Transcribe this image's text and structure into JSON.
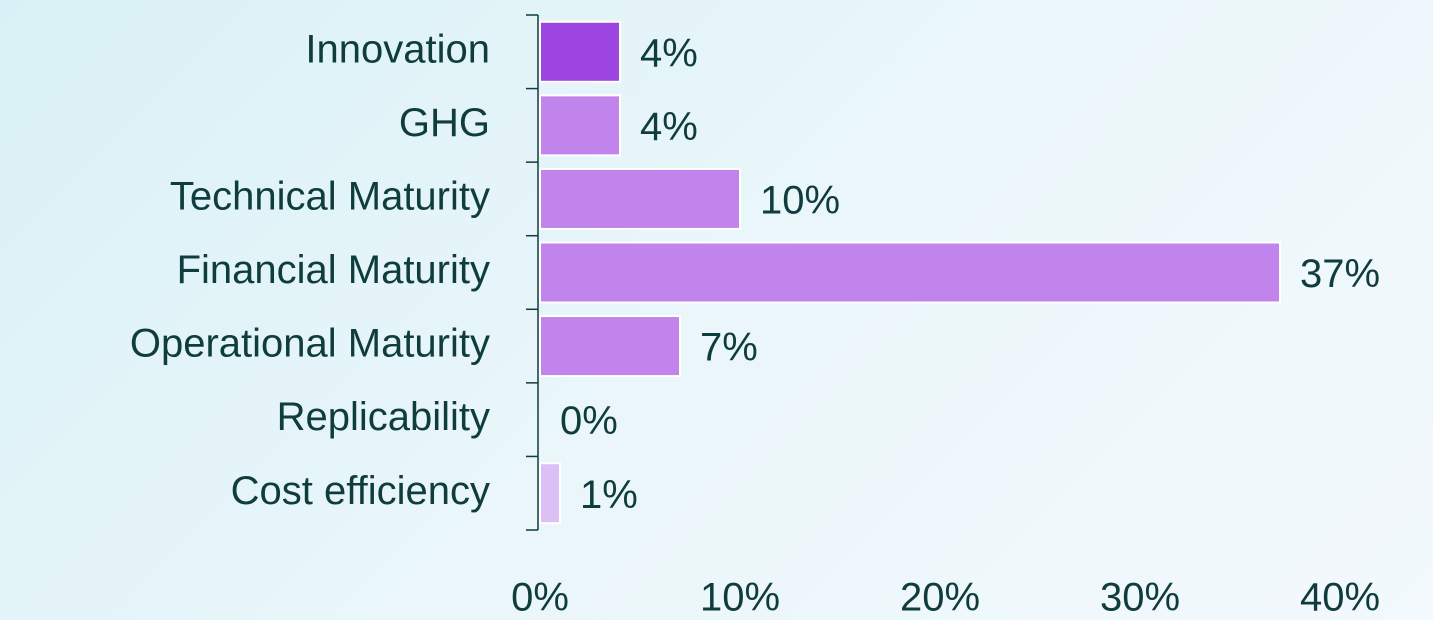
{
  "chart_data": {
    "type": "hbar",
    "categories": [
      "Innovation",
      "GHG",
      "Technical Maturity",
      "Financial Maturity",
      "Operational Maturity",
      "Replicability",
      "Cost efficiency"
    ],
    "values": [
      4,
      4,
      10,
      37,
      7,
      0,
      1
    ],
    "value_labels": [
      "4%",
      "4%",
      "10%",
      "37%",
      "7%",
      "0%",
      "1%"
    ],
    "colors": [
      "#9d45e0",
      "#c084ec",
      "#c084ec",
      "#c084ec",
      "#c084ec",
      "#c084ec",
      "#dcc0f5"
    ],
    "xlim": [
      0,
      40
    ],
    "xticks": [
      {
        "value": 0,
        "label": "0%"
      },
      {
        "value": 10,
        "label": "10%"
      },
      {
        "value": 20,
        "label": "20%"
      },
      {
        "value": 30,
        "label": "30%"
      },
      {
        "value": 40,
        "label": "40%"
      }
    ],
    "grid": false
  }
}
